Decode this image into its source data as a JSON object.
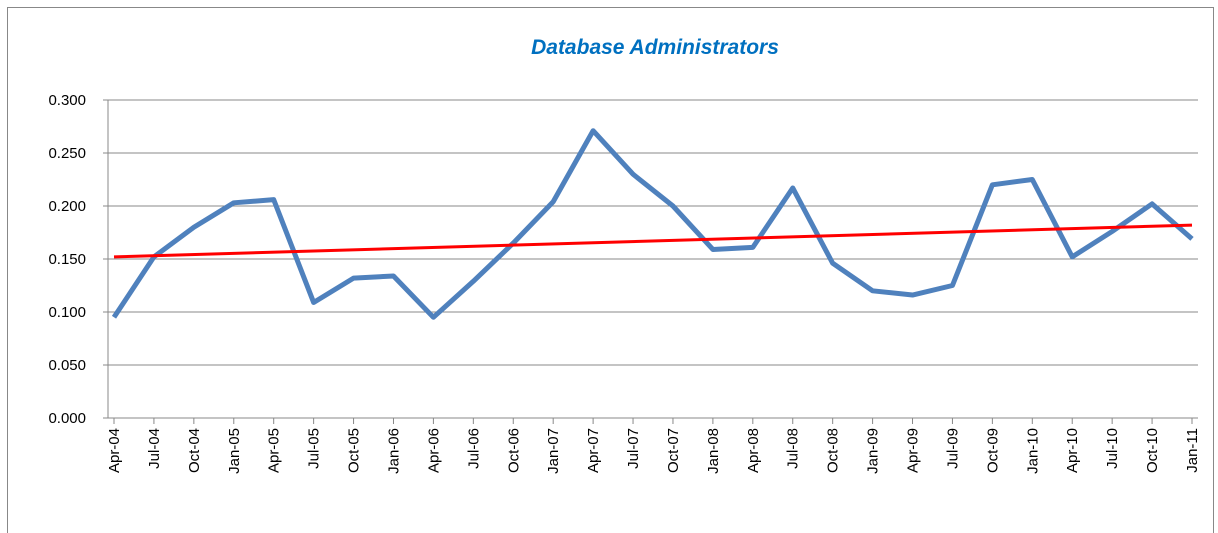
{
  "chart_data": {
    "type": "line",
    "title": "Database Administrators",
    "categories": [
      "Apr-04",
      "Jul-04",
      "Oct-04",
      "Jan-05",
      "Apr-05",
      "Jul-05",
      "Oct-05",
      "Jan-06",
      "Apr-06",
      "Jul-06",
      "Oct-06",
      "Jan-07",
      "Apr-07",
      "Jul-07",
      "Oct-07",
      "Jan-08",
      "Apr-08",
      "Jul-08",
      "Oct-08",
      "Jan-09",
      "Apr-09",
      "Jul-09",
      "Oct-09",
      "Jan-10",
      "Apr-10",
      "Jul-10",
      "Oct-10",
      "Jan-11"
    ],
    "series": [
      {
        "color": "#4f81bd",
        "values": [
          0.095,
          0.152,
          0.18,
          0.203,
          0.206,
          0.109,
          0.132,
          0.134,
          0.095,
          0.129,
          0.165,
          0.204,
          0.271,
          0.23,
          0.2,
          0.159,
          0.161,
          0.217,
          0.146,
          0.12,
          0.116,
          0.125,
          0.22,
          0.225,
          0.152,
          0.176,
          0.202,
          0.169
        ]
      }
    ],
    "trend_line": {
      "color": "#ff0000",
      "values": [
        0.152,
        0.182
      ]
    },
    "ylim": [
      0,
      0.3
    ],
    "yticks": [
      {
        "value": 0,
        "label": "0.000"
      },
      {
        "value": 0.05,
        "label": "0.050"
      },
      {
        "value": 0.1,
        "label": "0.100"
      },
      {
        "value": 0.15,
        "label": "0.150"
      },
      {
        "value": 0.2,
        "label": "0.200"
      },
      {
        "value": 0.25,
        "label": "0.250"
      },
      {
        "value": 0.3,
        "label": "0.300"
      }
    ],
    "grid": true
  }
}
